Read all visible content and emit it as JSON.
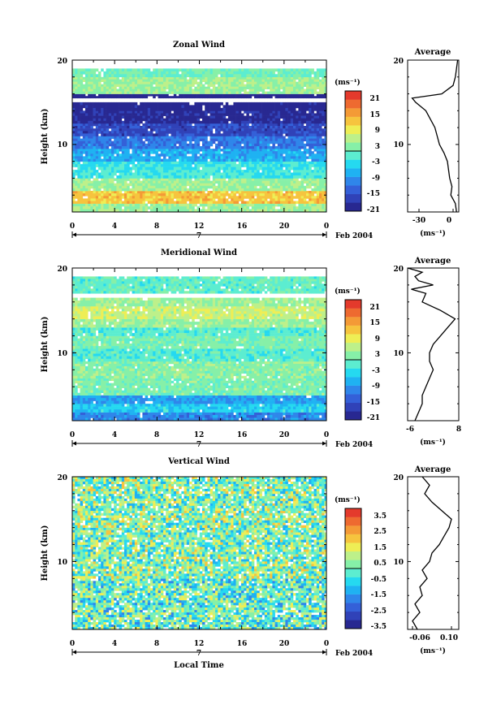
{
  "x_ticks": [
    "0",
    "4",
    "8",
    "12",
    "16",
    "20",
    "0"
  ],
  "day_label": "7",
  "month_label": "Feb 2004",
  "xlabel": "Local Time",
  "ylabel": "Height (km)",
  "unit_label": "(ms⁻¹)",
  "avg_unit_label": "(ms⁻¹)",
  "avg_title": "Average",
  "chart_data": [
    {
      "type": "heatmap",
      "title": "Zonal Wind",
      "x_range": [
        0,
        24
      ],
      "ylim": [
        2,
        20
      ],
      "y_ticks": [
        "10",
        "20"
      ],
      "colorbar_ticks": [
        "21",
        "15",
        "9",
        "3",
        "-3",
        "-9",
        "-15",
        "-21"
      ],
      "colorbar_range": [
        -24,
        24
      ],
      "layers": [
        {
          "y": [
            2,
            3
          ],
          "value": 3
        },
        {
          "y": [
            3,
            4.5
          ],
          "value": 12
        },
        {
          "y": [
            4.5,
            6
          ],
          "value": 3
        },
        {
          "y": [
            6,
            7
          ],
          "value": -3
        },
        {
          "y": [
            7,
            8
          ],
          "value": -4
        },
        {
          "y": [
            8,
            9.5
          ],
          "value": -9
        },
        {
          "y": [
            9.5,
            11
          ],
          "value": -13
        },
        {
          "y": [
            11,
            12.5
          ],
          "value": -18
        },
        {
          "y": [
            12.5,
            14
          ],
          "value": -22
        },
        {
          "y": [
            14,
            15
          ],
          "value": -23
        },
        {
          "y": [
            15.5,
            16
          ],
          "value": -26
        },
        {
          "y": [
            16,
            18
          ],
          "value": 3
        },
        {
          "y": [
            18,
            19
          ],
          "value": 0
        }
      ],
      "average": {
        "xlim": [
          -40,
          5
        ],
        "x_ticks": [
          "-30",
          "0"
        ],
        "profile_y": [
          2,
          3,
          4,
          5,
          6,
          7,
          8,
          9,
          10,
          11,
          12,
          13,
          14,
          15,
          15.5,
          16,
          17,
          18,
          19,
          20
        ],
        "profile_x": [
          3,
          2,
          -2,
          -1,
          -3,
          -4,
          -5,
          -8,
          -12,
          -14,
          -16,
          -20,
          -24,
          -33,
          -36,
          -10,
          0,
          2,
          3,
          4
        ]
      }
    },
    {
      "type": "heatmap",
      "title": "Meridional Wind",
      "x_range": [
        0,
        24
      ],
      "ylim": [
        2,
        20
      ],
      "y_ticks": [
        "10",
        "20"
      ],
      "colorbar_ticks": [
        "21",
        "15",
        "9",
        "3",
        "-3",
        "-9",
        "-15",
        "-21"
      ],
      "colorbar_range": [
        -24,
        24
      ],
      "layers": [
        {
          "y": [
            2,
            3
          ],
          "value": -12
        },
        {
          "y": [
            3,
            4
          ],
          "value": -6
        },
        {
          "y": [
            4,
            5
          ],
          "value": -10
        },
        {
          "y": [
            5,
            7
          ],
          "value": 1
        },
        {
          "y": [
            7,
            9
          ],
          "value": 2
        },
        {
          "y": [
            9,
            10.5
          ],
          "value": -2
        },
        {
          "y": [
            10.5,
            12
          ],
          "value": 1
        },
        {
          "y": [
            12,
            13
          ],
          "value": -2
        },
        {
          "y": [
            13,
            14
          ],
          "value": 3
        },
        {
          "y": [
            14,
            15.5
          ],
          "value": 6
        },
        {
          "y": [
            15.5,
            16.5
          ],
          "value": 3
        },
        {
          "y": [
            17,
            19
          ],
          "value": -1
        }
      ],
      "average": {
        "xlim": [
          -6,
          8
        ],
        "x_ticks": [
          "-6",
          "8"
        ],
        "profile_y": [
          2,
          3,
          4,
          5,
          6,
          7,
          8,
          9,
          10,
          11,
          12,
          13,
          14,
          15,
          16,
          17,
          17.5,
          18,
          18.5,
          19,
          19.5,
          20
        ],
        "profile_x": [
          -4,
          -3,
          -2,
          -2,
          -1,
          0,
          1,
          0,
          0,
          1,
          3,
          5,
          7,
          3,
          -2,
          -1,
          -5,
          1,
          -3,
          -4,
          -2,
          -6
        ]
      }
    },
    {
      "type": "heatmap",
      "title": "Vertical Wind",
      "x_range": [
        0,
        24
      ],
      "ylim": [
        2,
        20
      ],
      "y_ticks": [
        "10",
        "20"
      ],
      "colorbar_ticks": [
        "3.5",
        "2.5",
        "1.5",
        "0.5",
        "-0.5",
        "-1.5",
        "-2.5",
        "-3.5"
      ],
      "colorbar_range": [
        -4,
        4
      ],
      "layers": [
        {
          "y": [
            2,
            8
          ],
          "value": -0.2
        },
        {
          "y": [
            8,
            12
          ],
          "value": 0.2
        },
        {
          "y": [
            12,
            14
          ],
          "value": 0.1
        },
        {
          "y": [
            14,
            16
          ],
          "value": 0.3
        },
        {
          "y": [
            16,
            18
          ],
          "value": 0.1
        },
        {
          "y": [
            18,
            20
          ],
          "value": 0.2
        }
      ],
      "average": {
        "xlim": [
          -0.08,
          0.13
        ],
        "x_ticks": [
          "-0.06",
          "0.10"
        ],
        "profile_y": [
          2,
          3,
          4,
          5,
          6,
          7,
          8,
          9,
          10,
          11,
          12,
          13,
          14,
          15,
          15.5,
          16,
          17,
          18,
          19,
          20
        ],
        "profile_x": [
          -0.04,
          -0.06,
          -0.03,
          -0.05,
          -0.02,
          -0.03,
          0.0,
          -0.02,
          0.01,
          0.02,
          0.05,
          0.07,
          0.09,
          0.1,
          0.08,
          0.06,
          0.02,
          -0.01,
          0.01,
          -0.02
        ]
      }
    }
  ]
}
